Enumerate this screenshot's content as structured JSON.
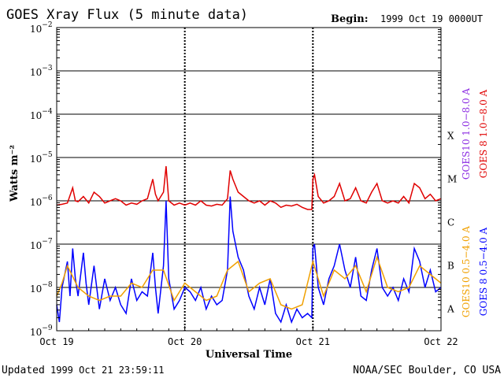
{
  "header": {
    "title": "GOES Xray Flux (5 minute data)",
    "begin_label": "Begin:",
    "begin_value": "1999 Oct 19 0000UT"
  },
  "footer": {
    "updated_label": "Updated",
    "updated_value": "1999 Oct 21 23:59:11",
    "credit": "NOAA/SEC Boulder, CO USA"
  },
  "colors": {
    "goes10_long": "#8b2be2",
    "goes8_long": "#e00000",
    "goes10_short": "#f0a000",
    "goes8_short": "#0000ff",
    "axis": "#000000"
  },
  "chart_data": {
    "type": "line",
    "scale": "log",
    "xlabel": "Universal Time",
    "ylabel": "Watts m⁻²",
    "x_range_hours": [
      0,
      72
    ],
    "ylim": [
      1e-09,
      0.01
    ],
    "x_ticks": [
      {
        "hour": 0,
        "label": "Oct 19"
      },
      {
        "hour": 24,
        "label": "Oct 20"
      },
      {
        "hour": 48,
        "label": "Oct 21"
      },
      {
        "hour": 72,
        "label": "Oct 22"
      }
    ],
    "y_ticks": [
      {
        "exp": -2,
        "base": "10",
        "sup": "−2"
      },
      {
        "exp": -3,
        "base": "10",
        "sup": "−3"
      },
      {
        "exp": -4,
        "base": "10",
        "sup": "−4"
      },
      {
        "exp": -5,
        "base": "10",
        "sup": "−5"
      },
      {
        "exp": -6,
        "base": "10",
        "sup": "−6"
      },
      {
        "exp": -7,
        "base": "10",
        "sup": "−7"
      },
      {
        "exp": -8,
        "base": "10",
        "sup": "−8"
      },
      {
        "exp": -9,
        "base": "10",
        "sup": "−9"
      }
    ],
    "flare_classes": [
      {
        "label": "X",
        "exp": -4
      },
      {
        "label": "M",
        "exp": -5
      },
      {
        "label": "C",
        "exp": -6
      },
      {
        "label": "B",
        "exp": -7
      },
      {
        "label": "A",
        "exp": -8
      }
    ],
    "legend": [
      {
        "name": "GOES10 1.0−8.0 A",
        "color": "#8b2be2",
        "position": "right-upper-left"
      },
      {
        "name": "GOES 8 1.0−8.0 A",
        "color": "#e00000",
        "position": "right-upper-right"
      },
      {
        "name": "GOES10 0.5−4.0 A",
        "color": "#f0a000",
        "position": "right-lower-left"
      },
      {
        "name": "GOES 8 0.5−4.0 A",
        "color": "#0000ff",
        "position": "right-lower-right"
      }
    ],
    "series": [
      {
        "name": "GOES 8 1.0−8.0 A",
        "color": "#e00000",
        "points": [
          [
            0,
            -6.1
          ],
          [
            1,
            -6.08
          ],
          [
            2,
            -6.05
          ],
          [
            3,
            -5.7
          ],
          [
            3.5,
            -6.0
          ],
          [
            4,
            -6.02
          ],
          [
            5,
            -5.9
          ],
          [
            6,
            -6.05
          ],
          [
            7,
            -5.8
          ],
          [
            8,
            -5.9
          ],
          [
            9,
            -6.05
          ],
          [
            10,
            -6.0
          ],
          [
            11,
            -5.95
          ],
          [
            12,
            -6.0
          ],
          [
            13,
            -6.1
          ],
          [
            14,
            -6.05
          ],
          [
            15,
            -6.08
          ],
          [
            16,
            -6.0
          ],
          [
            17,
            -5.95
          ],
          [
            18,
            -5.5
          ],
          [
            18.5,
            -5.85
          ],
          [
            19,
            -6.0
          ],
          [
            20,
            -5.8
          ],
          [
            20.5,
            -5.2
          ],
          [
            21,
            -6.0
          ],
          [
            22,
            -6.1
          ],
          [
            23,
            -6.05
          ],
          [
            24,
            -6.1
          ],
          [
            25,
            -6.05
          ],
          [
            26,
            -6.1
          ],
          [
            27,
            -6.0
          ],
          [
            28,
            -6.1
          ],
          [
            29,
            -6.12
          ],
          [
            30,
            -6.08
          ],
          [
            31,
            -6.1
          ],
          [
            32,
            -5.95
          ],
          [
            32.5,
            -5.3
          ],
          [
            33,
            -5.5
          ],
          [
            34,
            -5.8
          ],
          [
            35,
            -5.9
          ],
          [
            36,
            -6.0
          ],
          [
            37,
            -6.05
          ],
          [
            38,
            -6.0
          ],
          [
            39,
            -6.1
          ],
          [
            40,
            -6.0
          ],
          [
            41,
            -6.05
          ],
          [
            42,
            -6.15
          ],
          [
            43,
            -6.1
          ],
          [
            44,
            -6.12
          ],
          [
            45,
            -6.08
          ],
          [
            46,
            -6.15
          ],
          [
            47,
            -6.2
          ],
          [
            47.8,
            -6.2
          ],
          [
            48,
            -5.5
          ],
          [
            48.3,
            -5.4
          ],
          [
            49,
            -5.9
          ],
          [
            50,
            -6.05
          ],
          [
            51,
            -6.0
          ],
          [
            52,
            -5.9
          ],
          [
            53,
            -5.6
          ],
          [
            54,
            -6.0
          ],
          [
            55,
            -5.95
          ],
          [
            56,
            -5.7
          ],
          [
            57,
            -6.0
          ],
          [
            58,
            -6.05
          ],
          [
            59,
            -5.8
          ],
          [
            60,
            -5.6
          ],
          [
            61,
            -6.0
          ],
          [
            62,
            -6.05
          ],
          [
            63,
            -6.0
          ],
          [
            64,
            -6.05
          ],
          [
            65,
            -5.9
          ],
          [
            66,
            -6.05
          ],
          [
            67,
            -5.6
          ],
          [
            68,
            -5.7
          ],
          [
            69,
            -5.95
          ],
          [
            70,
            -5.85
          ],
          [
            71,
            -6.0
          ],
          [
            72,
            -5.95
          ]
        ]
      },
      {
        "name": "GOES 8 0.5−4.0 A",
        "color": "#0000ff",
        "points": [
          [
            0,
            -8.4
          ],
          [
            0.5,
            -8.8
          ],
          [
            1,
            -8.0
          ],
          [
            2,
            -7.4
          ],
          [
            2.5,
            -8.2
          ],
          [
            3,
            -7.1
          ],
          [
            3.5,
            -7.8
          ],
          [
            4,
            -8.2
          ],
          [
            5,
            -7.2
          ],
          [
            5.5,
            -7.9
          ],
          [
            6,
            -8.4
          ],
          [
            7,
            -7.5
          ],
          [
            8,
            -8.5
          ],
          [
            9,
            -7.8
          ],
          [
            10,
            -8.3
          ],
          [
            11,
            -8.0
          ],
          [
            12,
            -8.4
          ],
          [
            13,
            -8.6
          ],
          [
            14,
            -7.8
          ],
          [
            15,
            -8.3
          ],
          [
            16,
            -8.1
          ],
          [
            17,
            -8.2
          ],
          [
            18,
            -7.2
          ],
          [
            18.5,
            -8.0
          ],
          [
            19,
            -8.6
          ],
          [
            20,
            -7.5
          ],
          [
            20.5,
            -6.0
          ],
          [
            21,
            -7.8
          ],
          [
            22,
            -8.5
          ],
          [
            23,
            -8.3
          ],
          [
            24,
            -8.0
          ],
          [
            25,
            -8.1
          ],
          [
            26,
            -8.3
          ],
          [
            27,
            -8.0
          ],
          [
            28,
            -8.5
          ],
          [
            29,
            -8.2
          ],
          [
            30,
            -8.4
          ],
          [
            31,
            -8.3
          ],
          [
            32,
            -7.6
          ],
          [
            32.5,
            -5.9
          ],
          [
            33,
            -6.7
          ],
          [
            34,
            -7.3
          ],
          [
            35,
            -7.6
          ],
          [
            36,
            -8.2
          ],
          [
            37,
            -8.5
          ],
          [
            38,
            -8.0
          ],
          [
            39,
            -8.4
          ],
          [
            40,
            -7.8
          ],
          [
            41,
            -8.6
          ],
          [
            42,
            -8.8
          ],
          [
            43,
            -8.4
          ],
          [
            44,
            -8.8
          ],
          [
            45,
            -8.5
          ],
          [
            46,
            -8.7
          ],
          [
            47,
            -8.6
          ],
          [
            47.8,
            -8.7
          ],
          [
            48,
            -7.1
          ],
          [
            48.3,
            -7.0
          ],
          [
            49,
            -8.0
          ],
          [
            50,
            -8.4
          ],
          [
            51,
            -7.8
          ],
          [
            52,
            -7.5
          ],
          [
            53,
            -7.0
          ],
          [
            54,
            -7.6
          ],
          [
            55,
            -8.0
          ],
          [
            56,
            -7.3
          ],
          [
            57,
            -8.2
          ],
          [
            58,
            -8.3
          ],
          [
            59,
            -7.6
          ],
          [
            60,
            -7.1
          ],
          [
            61,
            -8.0
          ],
          [
            62,
            -8.2
          ],
          [
            63,
            -8.0
          ],
          [
            64,
            -8.3
          ],
          [
            65,
            -7.8
          ],
          [
            66,
            -8.1
          ],
          [
            67,
            -7.1
          ],
          [
            68,
            -7.4
          ],
          [
            69,
            -8.0
          ],
          [
            70,
            -7.6
          ],
          [
            71,
            -8.1
          ],
          [
            72,
            -8.0
          ]
        ]
      },
      {
        "name": "GOES10 0.5−4.0 A",
        "color": "#f0a000",
        "points": [
          [
            0,
            -8.2
          ],
          [
            1,
            -7.9
          ],
          [
            2,
            -7.5
          ],
          [
            4,
            -8.0
          ],
          [
            6,
            -8.2
          ],
          [
            8,
            -8.3
          ],
          [
            10,
            -8.2
          ],
          [
            12,
            -8.2
          ],
          [
            14,
            -7.9
          ],
          [
            16,
            -8.0
          ],
          [
            18,
            -7.6
          ],
          [
            20,
            -7.6
          ],
          [
            22,
            -8.3
          ],
          [
            24,
            -7.9
          ],
          [
            26,
            -8.1
          ],
          [
            28,
            -8.3
          ],
          [
            30,
            -8.2
          ],
          [
            32,
            -7.6
          ],
          [
            34,
            -7.4
          ],
          [
            36,
            -8.1
          ],
          [
            38,
            -7.9
          ],
          [
            40,
            -7.8
          ],
          [
            42,
            -8.4
          ],
          [
            44,
            -8.5
          ],
          [
            46,
            -8.4
          ],
          [
            48,
            -7.4
          ],
          [
            50,
            -8.2
          ],
          [
            52,
            -7.6
          ],
          [
            54,
            -7.8
          ],
          [
            56,
            -7.5
          ],
          [
            58,
            -8.1
          ],
          [
            60,
            -7.3
          ],
          [
            62,
            -8.0
          ],
          [
            64,
            -8.1
          ],
          [
            66,
            -8.0
          ],
          [
            68,
            -7.5
          ],
          [
            70,
            -7.7
          ],
          [
            72,
            -7.9
          ]
        ]
      }
    ]
  }
}
